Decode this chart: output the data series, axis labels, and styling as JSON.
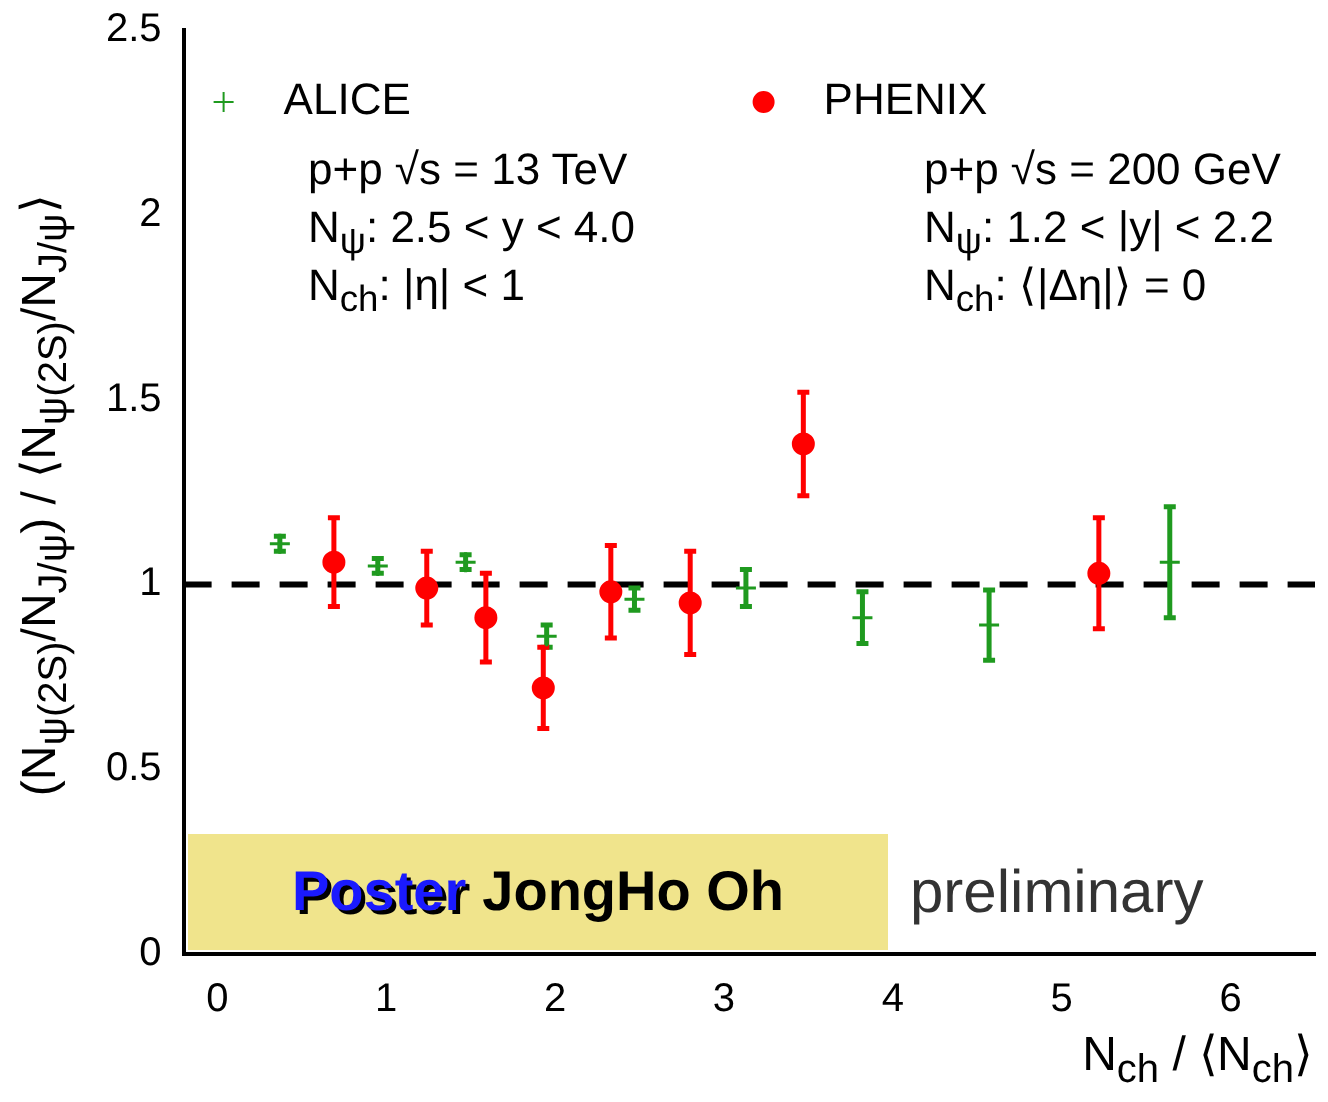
{
  "chart_data": {
    "type": "scatter",
    "xlabel": "N$_{ch}$ / ⟨N$_{ch}$⟩",
    "ylabel": "(N$_{ψ(2S)}$/N$_{J/ψ}$) / ⟨N$_{ψ(2S)}$/N$_{J/ψ}$⟩",
    "xlim": [
      -0.2,
      6.5
    ],
    "xticks": [
      0,
      1,
      2,
      3,
      4,
      5,
      6
    ],
    "ylim": [
      0,
      2.5
    ],
    "yticks": [
      0,
      0.5,
      1,
      1.5,
      2,
      2.5
    ],
    "grid": false,
    "legend": "top left",
    "series": [
      {
        "name": "ALICE",
        "marker": "cross",
        "color": "#1f9a1f",
        "x": [
          0.37,
          0.95,
          1.47,
          1.95,
          2.47,
          3.13,
          3.82,
          4.57,
          5.64
        ],
        "values": [
          1.11,
          1.05,
          1.06,
          0.86,
          0.96,
          0.99,
          0.91,
          0.89,
          1.06
        ],
        "errors": [
          0.02,
          0.02,
          0.02,
          0.03,
          0.03,
          0.05,
          0.07,
          0.095,
          0.15
        ]
      },
      {
        "name": "PHENIX",
        "marker": "circle",
        "color": "#ff0000",
        "x": [
          0.69,
          1.24,
          1.59,
          1.93,
          2.33,
          2.8,
          3.47,
          5.22
        ],
        "values": [
          1.06,
          0.99,
          0.91,
          0.72,
          0.98,
          0.95,
          1.38,
          1.03
        ],
        "errors": [
          0.12,
          0.1,
          0.12,
          0.11,
          0.125,
          0.14,
          0.14,
          0.15
        ]
      }
    ],
    "ref_lines": [
      {
        "axis": "y",
        "value": 1,
        "color": "#000000",
        "line_style": "dashed"
      }
    ],
    "annotations": [
      "p+p √s = 13 TeV",
      "N$_{ψ}$: 2.5 < y < 4.0",
      "N$_{ch}$: |η| < 1",
      "p+p √s = 200 GeV",
      "N$_{ψ}$: 1.2 < |y| < 2.2",
      "N$_{ch}$: ⟨|Δη|⟩ = 0",
      "Poster",
      "JongHo Oh",
      "preliminary"
    ]
  }
}
